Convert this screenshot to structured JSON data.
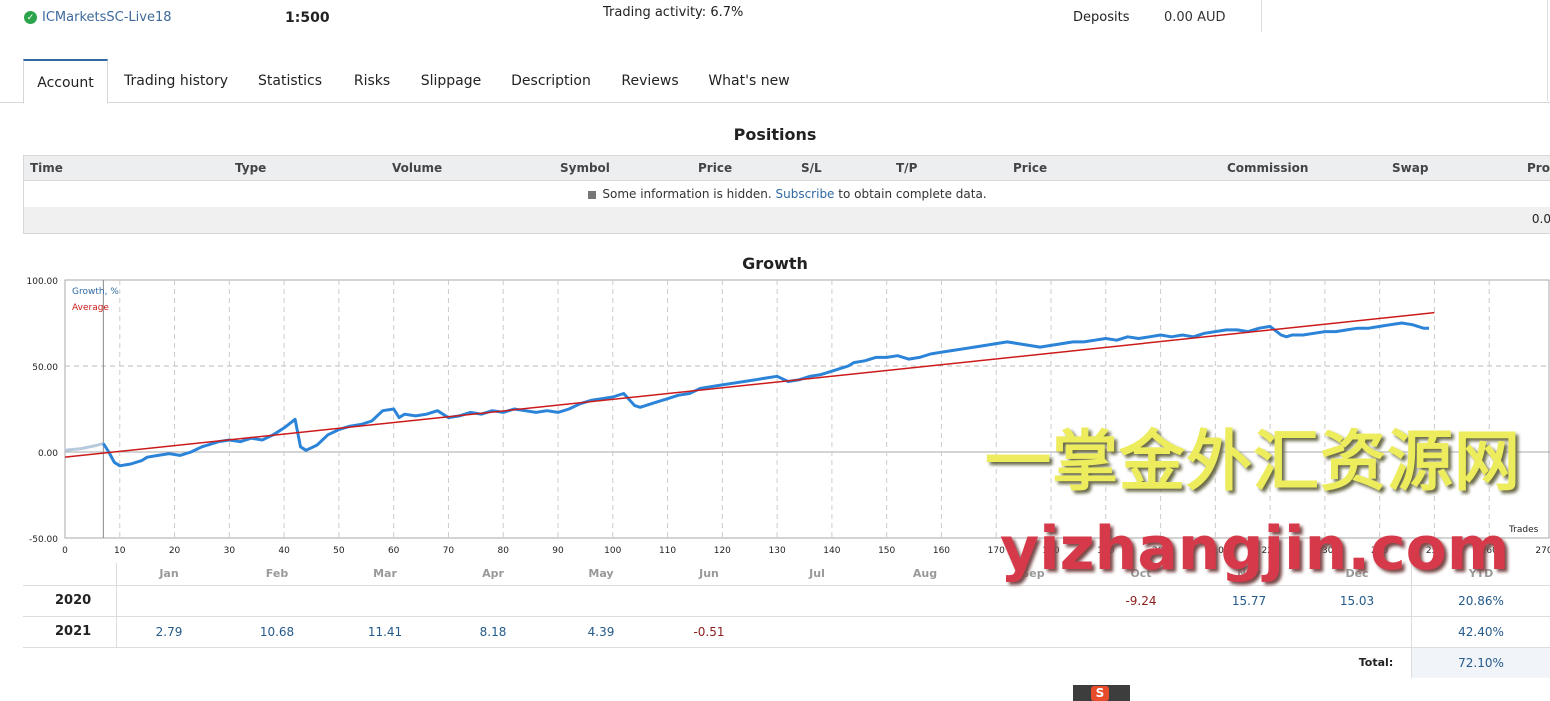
{
  "header": {
    "server": "ICMarketsSC-Live18",
    "leverage": "1:500",
    "trading_activity": "Trading activity: 6.7%",
    "deposits_label": "Deposits",
    "deposits_value": "0.00 AUD"
  },
  "tabs": [
    "Account",
    "Trading history",
    "Statistics",
    "Risks",
    "Slippage",
    "Description",
    "Reviews",
    "What's new"
  ],
  "positions": {
    "title": "Positions",
    "columns": [
      "Time",
      "Type",
      "Volume",
      "Symbol",
      "Price",
      "S/L",
      "T/P",
      "Price",
      "Commission",
      "Swap",
      "Prof"
    ],
    "info_prefix": "Some information is hidden.",
    "info_link": "Subscribe",
    "info_suffix": "to obtain complete data.",
    "total": "0.0"
  },
  "growth": {
    "title": "Growth",
    "legend_growth": "Growth, %",
    "legend_average": "Average",
    "trades_label": "Trades",
    "colors": {
      "growth": "#2c84d8",
      "average": "#cc1a1a",
      "pre": "#b7c9dd"
    }
  },
  "chart_data": {
    "type": "line",
    "xlabel": "Trades",
    "ylabel": "",
    "xlim": [
      0,
      270
    ],
    "ylim": [
      -50,
      100
    ],
    "y_ticks": [
      "100.00",
      "50.00",
      "0.00",
      "-50.00"
    ],
    "x_ticks": [
      "0",
      "10",
      "20",
      "30",
      "40",
      "50",
      "60",
      "70",
      "80",
      "90",
      "100",
      "110",
      "120",
      "130",
      "140",
      "150",
      "160",
      "170",
      "180",
      "190",
      "200",
      "210",
      "220",
      "230",
      "240",
      "250",
      "260",
      "270"
    ],
    "series": [
      {
        "name": "Growth, %",
        "x": [
          0,
          3,
          6,
          7,
          8,
          9,
          10,
          12,
          14,
          15,
          17,
          19,
          21,
          23,
          25,
          27,
          28,
          30,
          32,
          34,
          36,
          38,
          40,
          42,
          43,
          44,
          46,
          48,
          50,
          52,
          54,
          56,
          58,
          60,
          61,
          62,
          64,
          66,
          68,
          70,
          72,
          74,
          76,
          78,
          80,
          82,
          84,
          86,
          88,
          90,
          92,
          94,
          96,
          98,
          100,
          102,
          104,
          105,
          106,
          108,
          110,
          112,
          114,
          116,
          118,
          120,
          122,
          124,
          126,
          128,
          130,
          132,
          134,
          136,
          138,
          140,
          142,
          143,
          144,
          146,
          148,
          150,
          152,
          154,
          156,
          158,
          160,
          162,
          164,
          166,
          168,
          170,
          172,
          174,
          176,
          178,
          180,
          182,
          184,
          186,
          188,
          190,
          192,
          194,
          196,
          198,
          200,
          202,
          204,
          206,
          208,
          210,
          212,
          214,
          216,
          218,
          220,
          222,
          223,
          224,
          226,
          228,
          230,
          232,
          234,
          236,
          238,
          240,
          242,
          244,
          246,
          248,
          249
        ],
        "y": [
          1,
          2,
          4,
          5,
          0,
          -6,
          -8,
          -7,
          -5,
          -3,
          -2,
          -1,
          -2,
          0,
          3,
          5,
          6,
          7,
          6,
          8,
          7,
          10,
          14,
          19,
          3,
          1,
          4,
          10,
          13,
          15,
          16,
          18,
          24,
          25,
          20,
          22,
          21,
          22,
          24,
          20,
          21,
          23,
          22,
          24,
          23,
          25,
          24,
          23,
          24,
          23,
          25,
          28,
          30,
          31,
          32,
          34,
          27,
          26,
          27,
          29,
          31,
          33,
          34,
          37,
          38,
          39,
          40,
          41,
          42,
          43,
          44,
          41,
          42,
          44,
          45,
          47,
          49,
          50,
          52,
          53,
          55,
          55,
          56,
          54,
          55,
          57,
          58,
          59,
          60,
          61,
          62,
          63,
          64,
          63,
          62,
          61,
          62,
          63,
          64,
          64,
          65,
          66,
          65,
          67,
          66,
          67,
          68,
          67,
          68,
          67,
          69,
          70,
          71,
          71,
          70,
          72,
          73,
          68,
          67,
          68,
          68,
          69,
          70,
          70,
          71,
          72,
          72,
          73,
          74,
          75,
          74,
          72,
          72
        ]
      },
      {
        "name": "Average",
        "x": [
          0,
          250
        ],
        "y": [
          -3,
          81
        ]
      }
    ]
  },
  "monthly": {
    "months": [
      "Jan",
      "Feb",
      "Mar",
      "Apr",
      "May",
      "Jun",
      "Jul",
      "Aug",
      "Sep",
      "Oct",
      "Nov",
      "Dec"
    ],
    "ytd_label": "YTD",
    "rows": [
      {
        "year": "2020",
        "values": [
          "",
          "",
          "",
          "",
          "",
          "",
          "",
          "",
          "",
          "-9.24",
          "15.77",
          "15.03"
        ],
        "ytd": "20.86%"
      },
      {
        "year": "2021",
        "values": [
          "2.79",
          "10.68",
          "11.41",
          "8.18",
          "4.39",
          "-0.51",
          "",
          "",
          "",
          "",
          "",
          ""
        ],
        "ytd": "42.40%"
      }
    ],
    "total_label": "Total:",
    "total_value": "72.10%"
  },
  "watermark": {
    "line1": "一掌金外汇资源网",
    "line2": "yizhangjin.com"
  }
}
